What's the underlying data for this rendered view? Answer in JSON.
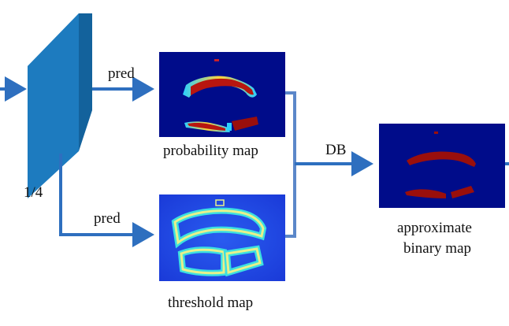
{
  "labels": {
    "pred_top": "pred",
    "pred_bottom": "pred",
    "scale": "1/4",
    "probability_map": "probability map",
    "threshold_map": "threshold map",
    "db": "DB",
    "approximate_binary_map_line1": "approximate",
    "approximate_binary_map_line2": "binary map"
  },
  "colors": {
    "arrow": "#2e6fbf",
    "connector": "#5b87c9",
    "feature_block_front": "#1d7bbf",
    "feature_block_side": "#13629c",
    "feature_block_top": "#49a2d8",
    "map_background_dark": "#000c8a",
    "threshold_background": "#1d47e8",
    "text_region_red": "#9a0f0c",
    "threshold_ring_outer": "#3ce0e0",
    "threshold_ring_inner": "#e8f08a"
  }
}
